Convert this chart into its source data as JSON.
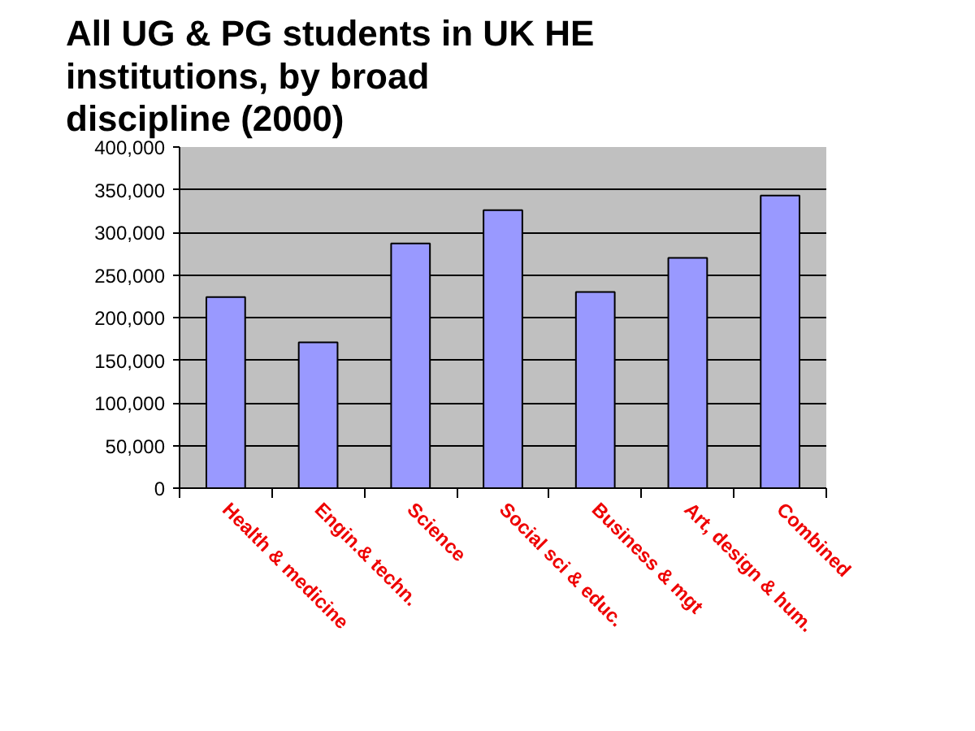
{
  "chart_data": {
    "type": "bar",
    "title": "All UG & PG students in UK HE institutions, by broad discipline (2000)",
    "categories": [
      "Health & medicine",
      "Engin.& techn.",
      "Science",
      "Social sci & educ.",
      "Business & mgt",
      "Art, design & hum.",
      "Combined"
    ],
    "values": [
      224000,
      171000,
      287000,
      326000,
      230000,
      270000,
      343000
    ],
    "color": "#9999ff",
    "ylim": [
      0,
      400000
    ],
    "yticks": [
      {
        "value": 0,
        "label": "0"
      },
      {
        "value": 50000,
        "label": "50,000"
      },
      {
        "value": 100000,
        "label": "100,000"
      },
      {
        "value": 150000,
        "label": "150,000"
      },
      {
        "value": 200000,
        "label": "200,000"
      },
      {
        "value": 250000,
        "label": "250,000"
      },
      {
        "value": 300000,
        "label": "300,000"
      },
      {
        "value": 350000,
        "label": "350,000"
      },
      {
        "value": 400000,
        "label": "400,000"
      }
    ],
    "grid": "y"
  }
}
